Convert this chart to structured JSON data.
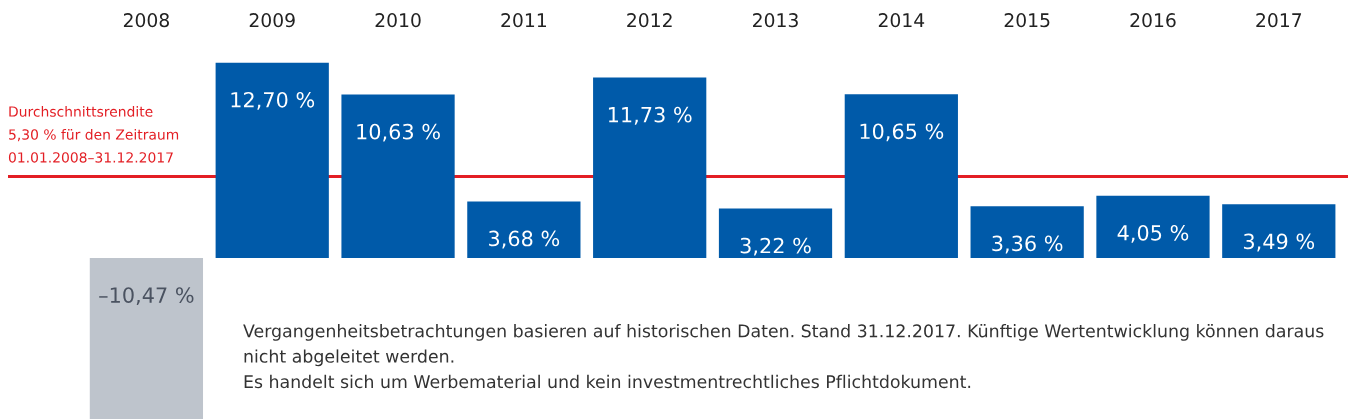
{
  "chart_data": {
    "type": "bar",
    "categories": [
      "2008",
      "2009",
      "2010",
      "2011",
      "2012",
      "2013",
      "2014",
      "2015",
      "2016",
      "2017"
    ],
    "values": [
      -10.47,
      12.7,
      10.63,
      3.68,
      11.73,
      3.22,
      10.65,
      3.36,
      4.05,
      3.49
    ],
    "colors": [
      "#bec4cc",
      "#005aa9",
      "#005aa9",
      "#005aa9",
      "#005aa9",
      "#005aa9",
      "#005aa9",
      "#005aa9",
      "#005aa9",
      "#005aa9"
    ],
    "value_labels": [
      "–10,47 %",
      "12,70 %",
      "10,63 %",
      "3,68 %",
      "11,73 %",
      "3,22 %",
      "10,65 %",
      "3,36 %",
      "4,05 %",
      "3,49 %"
    ],
    "tick_labels": "x",
    "ref_lines": [
      {
        "axis": "y",
        "value": 5.3,
        "label": "Durchschnittsrendite\n5,30 % für den Zeitraum\n01.01.2008–31.12.2017",
        "color": "#e31e24"
      }
    ],
    "annotations": [
      "Vergangenheitsbetrachtungen basieren auf historischen Daten. Stand 31.12.2017. Künftige Wertentwicklung können daraus nicht abgeleitet werden.",
      "Es handelt sich um Werbematerial und kein investmentrechtliches Pflichtdokument."
    ]
  }
}
